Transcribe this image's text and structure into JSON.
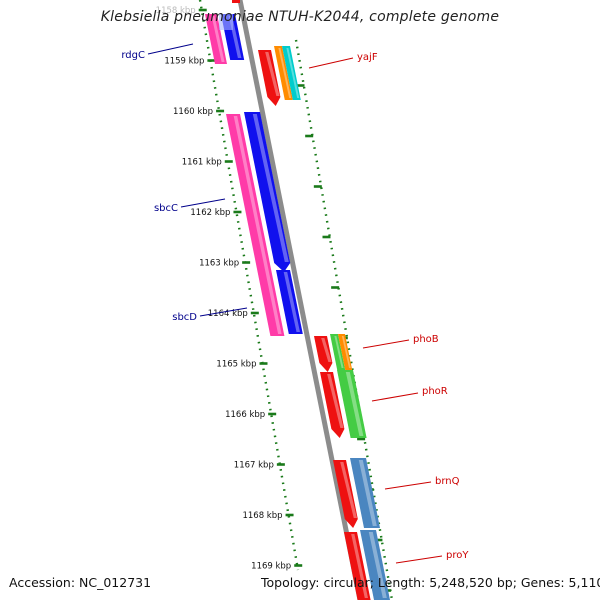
{
  "title": "Klebsiella pneumoniae NTUH-K2044, complete genome",
  "footer": {
    "accession": "Accession: NC_012731",
    "summary": "Topology: circular; Length: 5,248,520 bp; Genes: 5,110"
  },
  "ruler": {
    "labels": [
      "1158 kbp",
      "1159 kbp",
      "1160 kbp",
      "1161 kbp",
      "1162 kbp",
      "1163 kbp",
      "1164 kbp",
      "1165 kbp",
      "1166 kbp",
      "1167 kbp",
      "1168 kbp",
      "1169 kbp"
    ]
  },
  "genes_left": [
    {
      "name": "rdgC",
      "color": "#00008b"
    },
    {
      "name": "sbcC",
      "color": "#00008b"
    },
    {
      "name": "sbcD",
      "color": "#00008b"
    }
  ],
  "genes_right": [
    {
      "name": "yajF",
      "color": "#cc0000"
    },
    {
      "name": "phoB",
      "color": "#cc0000"
    },
    {
      "name": "phoR",
      "color": "#cc0000"
    },
    {
      "name": "brnQ",
      "color": "#cc0000"
    },
    {
      "name": "proY",
      "color": "#cc0000"
    }
  ],
  "colors": {
    "backbone": "#8c8c8c",
    "ruler": "#1a7a1a",
    "cds_red": "#ee1111",
    "cds_pink": "#ff3ba8",
    "cds_blue": "#1010ee",
    "cds_orange": "#ff8c00",
    "cds_cyan": "#00cccc",
    "cds_green": "#44cc44",
    "cds_steel": "#4a86c0"
  }
}
